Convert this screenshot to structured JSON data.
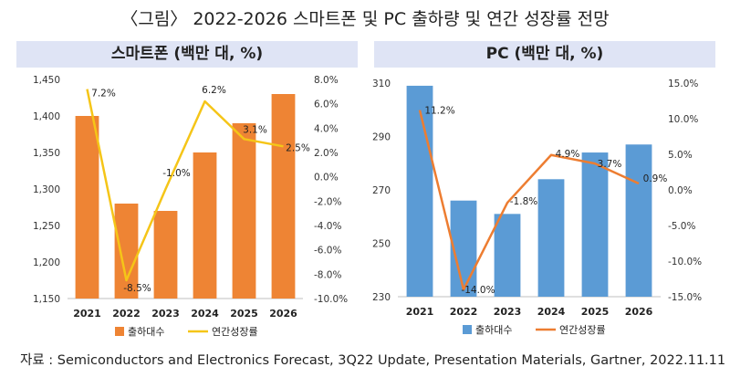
{
  "figure_title": "〈그림〉 2022-2026 스마트폰 및 PC 출하량 및 연간 성장률 전망",
  "source": "자료 : Semiconductors and Electronics Forecast, 3Q22 Update, Presentation Materials, Gartner, 2022.11.11",
  "colors": {
    "smartphone_bar": "#ee8434",
    "smartphone_line": "#f5c518",
    "pc_bar": "#5b9bd5",
    "pc_line": "#ed7d31",
    "panel_header": "#dfe4f5"
  },
  "chart_data": [
    {
      "type": "bar",
      "title": "스마트폰 (백만 대, %)",
      "categories": [
        "2021",
        "2022",
        "2023",
        "2024",
        "2025",
        "2026"
      ],
      "series": [
        {
          "name": "출하대수",
          "type": "bar",
          "axis": "left",
          "values": [
            1400,
            1280,
            1270,
            1350,
            1390,
            1430
          ]
        },
        {
          "name": "연간성장률",
          "type": "line",
          "axis": "right",
          "values": [
            7.2,
            -8.5,
            -1.0,
            6.2,
            3.1,
            2.5
          ],
          "labels": [
            "7.2%",
            "-8.5%",
            "-1.0%",
            "6.2%",
            "3.1%",
            "2.5%"
          ]
        }
      ],
      "ylim": [
        1150,
        1450
      ],
      "yticks": [
        "1,150",
        "1,200",
        "1,250",
        "1,300",
        "1,350",
        "1,400",
        "1,450"
      ],
      "y2lim": [
        -10,
        8
      ],
      "y2ticks": [
        "-10.0%",
        "-8.0%",
        "-6.0%",
        "-4.0%",
        "-2.0%",
        "0.0%",
        "2.0%",
        "4.0%",
        "6.0%",
        "8.0%"
      ],
      "grid": false,
      "legend": "bottom"
    },
    {
      "type": "bar",
      "title": "PC (백만 대, %)",
      "categories": [
        "2021",
        "2022",
        "2023",
        "2024",
        "2025",
        "2026"
      ],
      "series": [
        {
          "name": "출하대수",
          "type": "bar",
          "axis": "left",
          "values": [
            309,
            266,
            261,
            274,
            284,
            287
          ]
        },
        {
          "name": "연간성장률",
          "type": "line",
          "axis": "right",
          "values": [
            11.2,
            -14.0,
            -1.8,
            4.9,
            3.7,
            0.9
          ],
          "labels": [
            "11.2%",
            "-14.0%",
            "-1.8%",
            "4.9%",
            "3.7%",
            "0.9%"
          ]
        }
      ],
      "ylim": [
        230,
        310
      ],
      "yticks": [
        "230",
        "250",
        "270",
        "290",
        "310"
      ],
      "y2lim": [
        -15,
        15
      ],
      "y2ticks": [
        "-15.0%",
        "-10.0%",
        "-5.0%",
        "0.0%",
        "5.0%",
        "10.0%",
        "15.0%"
      ],
      "grid": false,
      "legend": "bottom"
    }
  ]
}
